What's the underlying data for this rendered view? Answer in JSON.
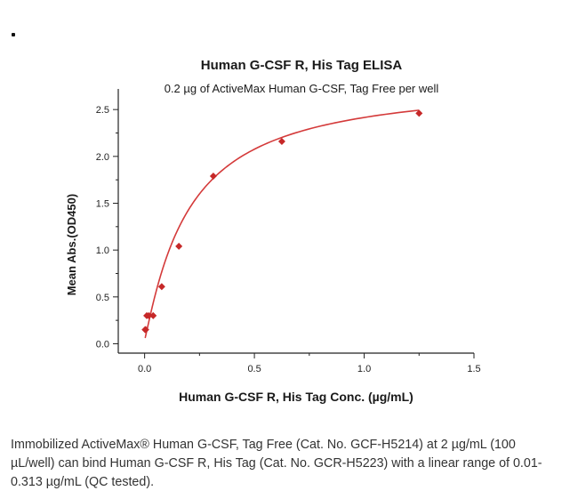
{
  "chart_data": {
    "type": "scatter",
    "title": "Human G-CSF R, His Tag ELISA",
    "subtitle": "0.2 µg of ActiveMax Human G-CSF, Tag Free per well",
    "xlabel": "Human G-CSF R, His Tag Conc. (µg/mL)",
    "ylabel": "Mean Abs.(OD450)",
    "xlim": [
      -0.12,
      1.5
    ],
    "ylim": [
      -0.1,
      2.72
    ],
    "x_ticks": [
      "0.0",
      "0.5",
      "1.0",
      "1.5"
    ],
    "y_ticks": [
      "0.0",
      "0.5",
      "1.0",
      "1.5",
      "2.0",
      "2.5"
    ],
    "grid": false,
    "marker_color": "#c62828",
    "line_color": "#d43a3a",
    "series": [
      {
        "points": [
          {
            "x": 0.0024,
            "y": 0.15
          },
          {
            "x": 0.0049,
            "y": 0.15
          },
          {
            "x": 0.0098,
            "y": 0.3
          },
          {
            "x": 0.0195,
            "y": 0.3
          },
          {
            "x": 0.039,
            "y": 0.3
          },
          {
            "x": 0.078,
            "y": 0.61
          },
          {
            "x": 0.156,
            "y": 1.04
          },
          {
            "x": 0.313,
            "y": 1.79
          },
          {
            "x": 0.625,
            "y": 2.16
          },
          {
            "x": 1.25,
            "y": 2.46
          }
        ]
      }
    ],
    "fit": {
      "bottom": 0.04,
      "top": 2.82,
      "ec50": 0.2,
      "hill": 1.1
    }
  },
  "caption_lines": [
    "Immobilized ActiveMax® Human G-CSF, Tag Free (Cat. No. GCF-H5214) at 2 µg/mL (100",
    "µL/well) can bind Human G-CSF R, His Tag (Cat. No. GCR-H5223) with a linear range of 0.01-",
    "0.313 µg/mL (QC tested)."
  ]
}
